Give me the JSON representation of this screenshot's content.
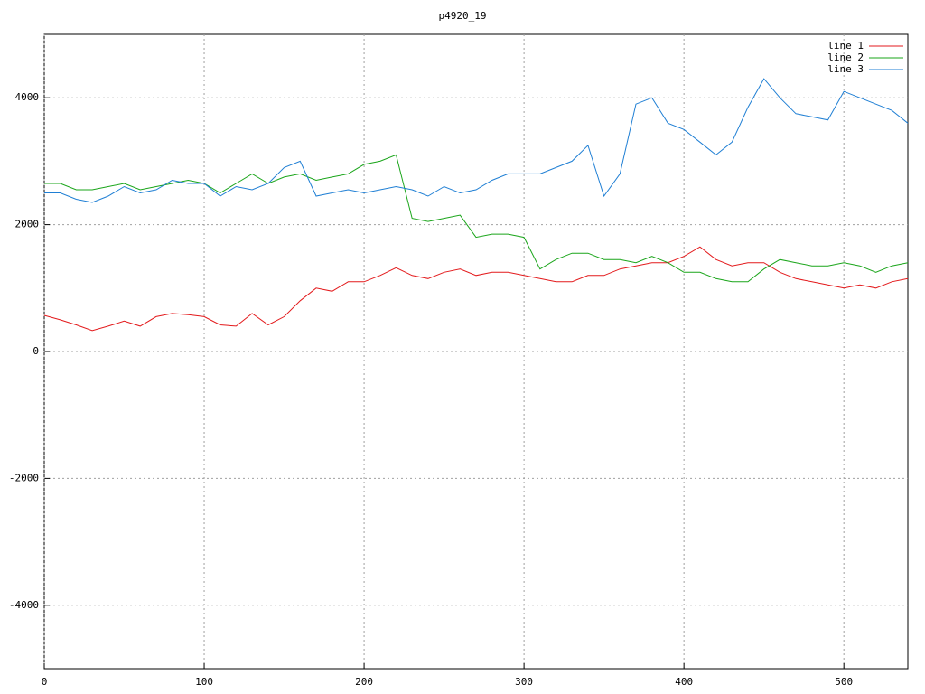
{
  "chart_data": {
    "type": "line",
    "title": "p4920_19",
    "x": [
      0,
      10,
      20,
      30,
      40,
      50,
      60,
      70,
      80,
      90,
      100,
      110,
      120,
      130,
      140,
      150,
      160,
      170,
      180,
      190,
      200,
      210,
      220,
      230,
      240,
      250,
      260,
      270,
      280,
      290,
      300,
      310,
      320,
      330,
      340,
      350,
      360,
      370,
      380,
      390,
      400,
      410,
      420,
      430,
      440,
      450,
      460,
      470,
      480,
      490,
      500,
      510,
      520,
      530,
      540
    ],
    "series": [
      {
        "name": "line 1",
        "color": "#e31a1c",
        "values": [
          570,
          500,
          420,
          330,
          400,
          480,
          400,
          550,
          600,
          580,
          550,
          420,
          400,
          600,
          420,
          550,
          800,
          1000,
          950,
          1100,
          1100,
          1200,
          1320,
          1200,
          1150,
          1250,
          1300,
          1200,
          1250,
          1250,
          1200,
          1150,
          1100,
          1100,
          1200,
          1200,
          1300,
          1350,
          1400,
          1400,
          1500,
          1650,
          1450,
          1350,
          1400,
          1400,
          1250,
          1150,
          1100,
          1050,
          1000,
          1050,
          1000,
          1100,
          1150
        ]
      },
      {
        "name": "line 2",
        "color": "#1aa51a",
        "values": [
          2650,
          2650,
          2550,
          2550,
          2600,
          2650,
          2550,
          2600,
          2650,
          2700,
          2650,
          2500,
          2650,
          2800,
          2650,
          2750,
          2800,
          2700,
          2750,
          2800,
          2950,
          3000,
          3100,
          2100,
          2050,
          2100,
          2150,
          1800,
          1850,
          1850,
          1800,
          1300,
          1450,
          1550,
          1550,
          1450,
          1450,
          1400,
          1500,
          1400,
          1250,
          1250,
          1150,
          1100,
          1100,
          1300,
          1450,
          1400,
          1350,
          1350,
          1400,
          1350,
          1250,
          1350,
          1400
        ]
      },
      {
        "name": "line 3",
        "color": "#1f7fd4",
        "values": [
          2500,
          2500,
          2400,
          2350,
          2450,
          2600,
          2500,
          2550,
          2700,
          2650,
          2650,
          2450,
          2600,
          2550,
          2650,
          2900,
          3000,
          2450,
          2500,
          2550,
          2500,
          2550,
          2600,
          2550,
          2450,
          2600,
          2500,
          2550,
          2700,
          2800,
          2800,
          2800,
          2900,
          3000,
          3250,
          2450,
          2800,
          3900,
          4000,
          3600,
          3500,
          3300,
          3100,
          3300,
          3850,
          4300,
          4000,
          3750,
          3700,
          3650,
          4100,
          4000,
          3900,
          3800,
          3600
        ]
      }
    ],
    "xlim": [
      0,
      540
    ],
    "xticks": [
      0,
      100,
      200,
      300,
      400,
      500
    ],
    "ylim": [
      -5000,
      5000
    ],
    "yticks": [
      -4000,
      -2000,
      0,
      2000,
      4000
    ],
    "grid": true,
    "legend": "top-right"
  }
}
